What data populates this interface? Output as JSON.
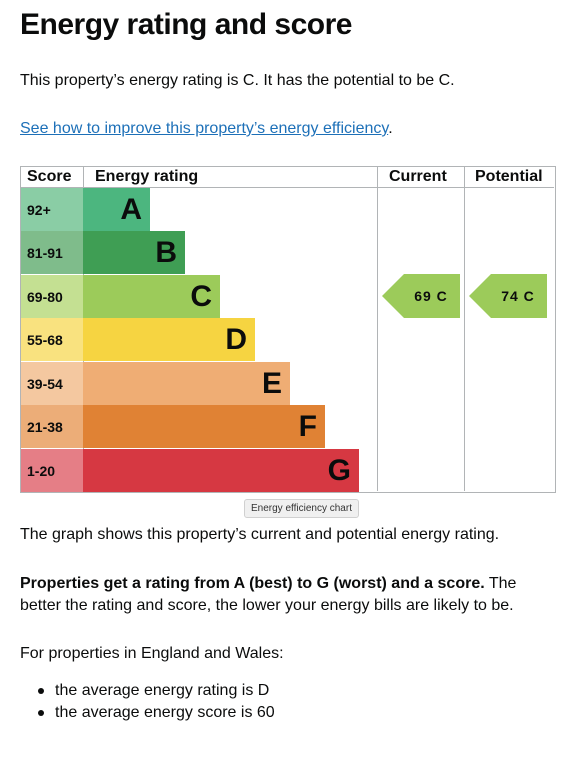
{
  "heading": "Energy rating and score",
  "summary": "This property’s energy rating is C. It has the potential to be C.",
  "improve": {
    "link_text": "See how to improve this property’s energy efficiency",
    "suffix": "."
  },
  "chart": {
    "headers": {
      "score": "Score",
      "rating": "Energy rating",
      "current": "Current",
      "potential": "Potential"
    },
    "bands": [
      {
        "score": "92+",
        "letter": "A",
        "color": "#4cb67f",
        "score_bg": "#8acda5"
      },
      {
        "score": "81-91",
        "letter": "B",
        "color": "#3f9e54",
        "score_bg": "#7fbc8b"
      },
      {
        "score": "69-80",
        "letter": "C",
        "color": "#9ccb5a",
        "score_bg": "#c4e092"
      },
      {
        "score": "55-68",
        "letter": "D",
        "color": "#f6d441",
        "score_bg": "#f9e27f"
      },
      {
        "score": "39-54",
        "letter": "E",
        "color": "#efad74",
        "score_bg": "#f4c8a0"
      },
      {
        "score": "21-38",
        "letter": "F",
        "color": "#e08234",
        "score_bg": "#ecad78"
      },
      {
        "score": "1-20",
        "letter": "G",
        "color": "#d63842",
        "score_bg": "#e57e86"
      }
    ],
    "current": {
      "label": "69  C",
      "color": "#9ccb5a"
    },
    "potential": {
      "label": "74  C",
      "color": "#9ccb5a"
    },
    "tooltip": "Energy efficiency chart"
  },
  "graph_text": "The graph shows this property’s current and potential energy rating.",
  "properties": {
    "bold": "Properties get a rating from A (best) to G (worst) and a score.",
    "rest": " The better the rating and score, the lower your energy bills are likely to be."
  },
  "england_text": "For properties in England and Wales:",
  "averages": [
    "the average energy rating is D",
    "the average energy score is 60"
  ]
}
